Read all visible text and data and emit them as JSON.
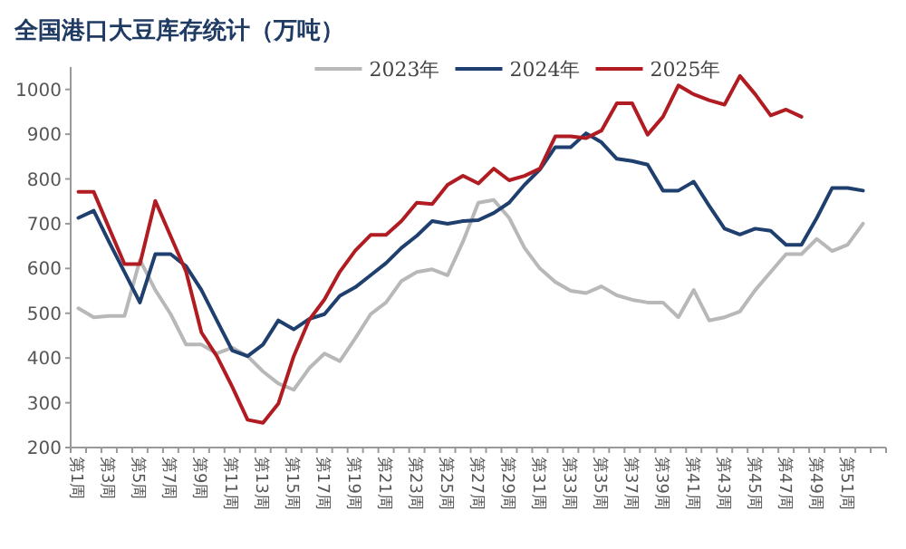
{
  "chart_data": {
    "type": "line",
    "title": "全国港口大豆库存统计（万吨）",
    "categories": [
      "第1周",
      null,
      "第3周",
      null,
      "第5周",
      null,
      "第7周",
      null,
      "第9周",
      null,
      "第11周",
      null,
      "第13周",
      null,
      "第15周",
      null,
      "第17周",
      null,
      "第19周",
      null,
      "第21周",
      null,
      "第23周",
      null,
      "第25周",
      null,
      "第27周",
      null,
      "第29周",
      null,
      "第31周",
      null,
      "第33周",
      null,
      "第35周",
      null,
      "第37周",
      null,
      "第39周",
      null,
      "第41周",
      null,
      "第43周",
      null,
      "第45周",
      null,
      "第47周",
      null,
      "第49周",
      null,
      "第51周",
      null,
      null
    ],
    "series": [
      {
        "name": "2023年",
        "color": "#b8b8b8",
        "values": [
          511,
          491,
          494,
          494,
          619,
          552,
          498,
          430,
          430,
          410,
          423,
          404,
          370,
          343,
          329,
          377,
          410,
          393,
          444,
          498,
          524,
          572,
          592,
          598,
          585,
          660,
          747,
          753,
          713,
          646,
          600,
          570,
          550,
          545,
          560,
          540,
          530,
          524,
          524,
          491,
          552,
          484,
          491,
          504,
          552,
          592,
          632,
          632,
          666,
          639,
          653,
          700,
          null
        ]
      },
      {
        "name": "2024年",
        "color": "#1f3f6e",
        "values": [
          713,
          729,
          659,
          592,
          524,
          632,
          632,
          605,
          552,
          484,
          417,
          404,
          430,
          484,
          464,
          487,
          498,
          539,
          558,
          585,
          612,
          646,
          673,
          706,
          700,
          706,
          708,
          724,
          747,
          787,
          821,
          871,
          871,
          902,
          882,
          845,
          840,
          832,
          774,
          774,
          794,
          740,
          689,
          676,
          689,
          684,
          653,
          653,
          713,
          780,
          780,
          774,
          null
        ]
      },
      {
        "name": "2025年",
        "color": "#b01c22",
        "values": [
          771,
          771,
          690,
          610,
          610,
          751,
          672,
          593,
          457,
          404,
          336,
          262,
          255,
          298,
          404,
          485,
          531,
          593,
          640,
          675,
          675,
          706,
          747,
          744,
          787,
          807,
          790,
          823,
          797,
          807,
          823,
          895,
          895,
          891,
          908,
          969,
          969,
          899,
          939,
          1009,
          989,
          976,
          966,
          1030,
          989,
          942,
          955,
          939,
          null,
          null,
          null,
          null,
          null
        ]
      }
    ],
    "ylim": [
      200,
      1050
    ],
    "yticks": [
      200,
      300,
      400,
      500,
      600,
      700,
      800,
      900,
      1000
    ],
    "legend": "top",
    "grid": false,
    "marker": "none",
    "line_style": "solid"
  }
}
